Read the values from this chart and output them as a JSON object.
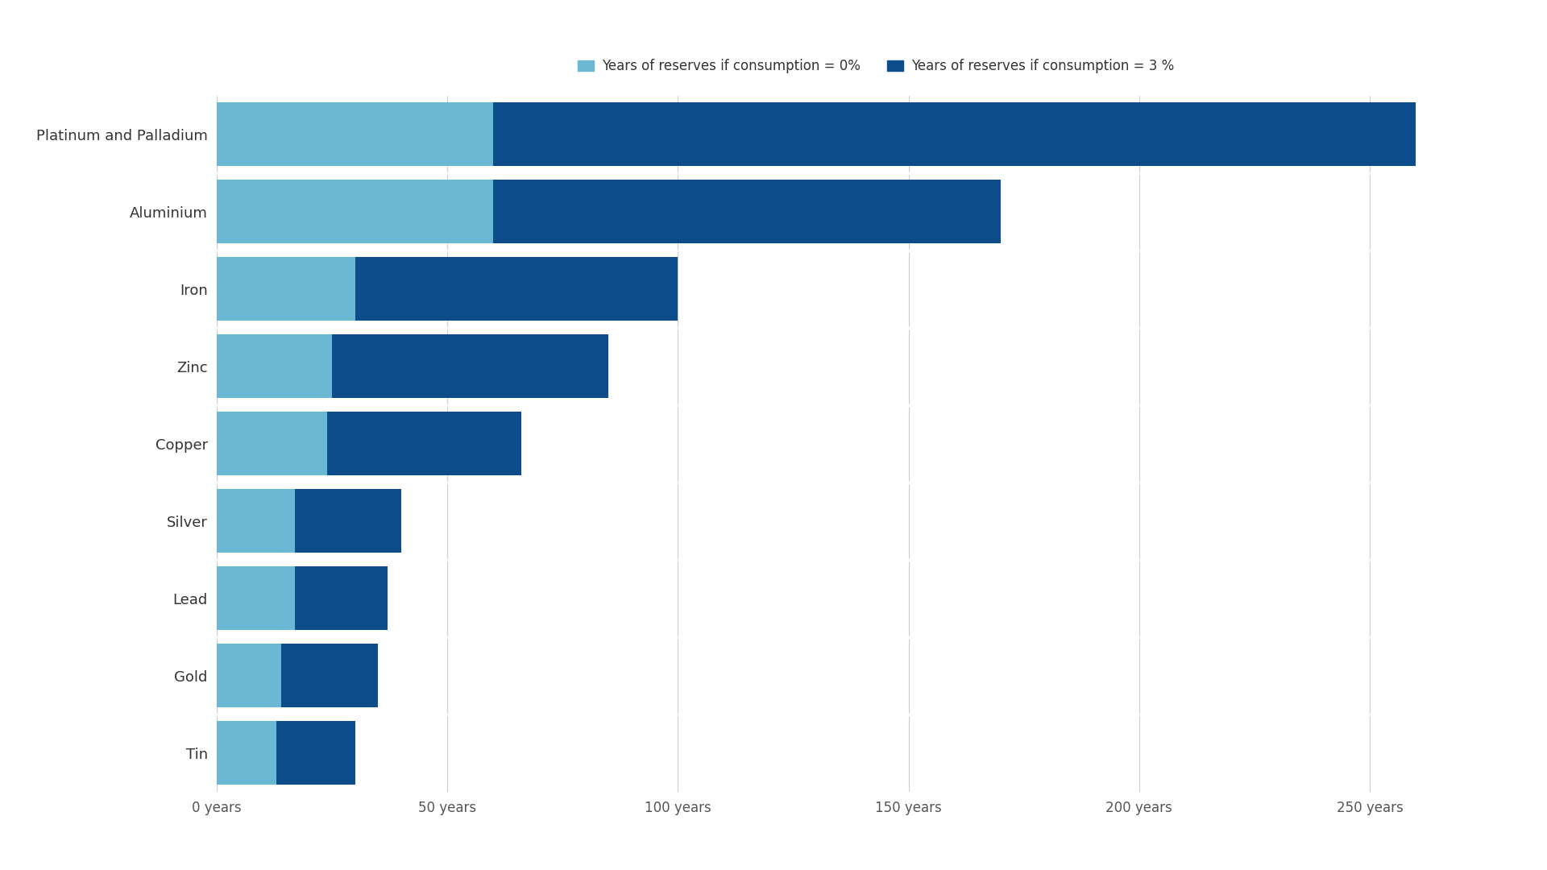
{
  "categories": [
    "Platinum and Palladium",
    "Aluminium",
    "Iron",
    "Zinc",
    "Copper",
    "Silver",
    "Lead",
    "Gold",
    "Tin"
  ],
  "values_0pct": [
    60,
    60,
    30,
    25,
    24,
    17,
    17,
    14,
    13
  ],
  "values_3pct": [
    200,
    110,
    70,
    60,
    42,
    23,
    20,
    21,
    17
  ],
  "color_0pct": "#6BB8D4",
  "color_3pct": "#0E4D8C",
  "legend_label_0pct": "Years of reserves if consumption = 0%",
  "legend_label_3pct": "Years of reserves if consumption = 3 %",
  "xtick_labels": [
    "0 years",
    "50 years",
    "100 years",
    "150 years",
    "200 years",
    "250 years"
  ],
  "xtick_values": [
    0,
    50,
    100,
    150,
    200,
    250
  ],
  "xlim": [
    0,
    275
  ],
  "background_color": "#FFFFFF",
  "bar_height": 0.82,
  "label_fontsize": 13,
  "tick_fontsize": 12,
  "legend_fontsize": 12
}
